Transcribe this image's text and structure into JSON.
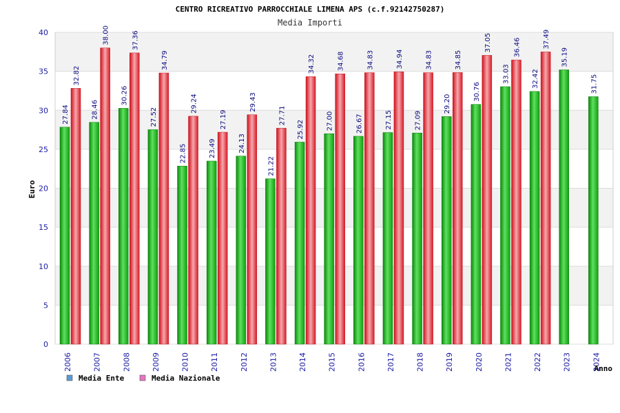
{
  "chart_data": {
    "type": "bar",
    "title": "CENTRO RICREATIVO PARROCCHIALE LIMENA APS (c.f.92142750287)",
    "subtitle": "Media Importi",
    "xlabel": "Anno",
    "ylabel": "Euro",
    "ylim": [
      0,
      40
    ],
    "yticks": [
      0,
      5,
      10,
      15,
      20,
      25,
      30,
      35,
      40
    ],
    "grid": true,
    "legend_position": "bottom-left",
    "categories": [
      "2006",
      "2007",
      "2008",
      "2009",
      "2010",
      "2011",
      "2012",
      "2013",
      "2014",
      "2015",
      "2016",
      "2017",
      "2018",
      "2019",
      "2020",
      "2021",
      "2022",
      "2023",
      "2024"
    ],
    "series": [
      {
        "name": "Media Ente",
        "legend_color": "#5b9bd5",
        "color": "#17b317",
        "values": [
          27.84,
          28.46,
          30.26,
          27.52,
          22.85,
          23.49,
          24.13,
          21.22,
          25.92,
          27.0,
          26.67,
          27.15,
          27.09,
          29.2,
          30.76,
          33.03,
          32.42,
          35.19,
          31.75
        ],
        "labels": [
          "27.84",
          "28.46",
          "30.26",
          "27.52",
          "22.85",
          "23.49",
          "24.13",
          "21.22",
          "25.92",
          "27.00",
          "26.67",
          "27.15",
          "27.09",
          "29.20",
          "30.76",
          "33.03",
          "32.42",
          "35.19",
          "31.75"
        ]
      },
      {
        "name": "Media Nazionale",
        "legend_color": "#e377c2",
        "color": "#e8222e",
        "values": [
          32.82,
          38.0,
          37.36,
          34.79,
          29.24,
          27.19,
          29.43,
          27.71,
          34.32,
          34.68,
          34.83,
          34.94,
          34.83,
          34.85,
          37.05,
          36.46,
          37.49,
          null,
          null
        ],
        "labels": [
          "32.82",
          "38.00",
          "37.36",
          "34.79",
          "29.24",
          "27.19",
          "29.43",
          "27.71",
          "34.32",
          "34.68",
          "34.83",
          "34.94",
          "34.83",
          "34.85",
          "37.05",
          "36.46",
          "37.49",
          null,
          null
        ]
      }
    ]
  }
}
